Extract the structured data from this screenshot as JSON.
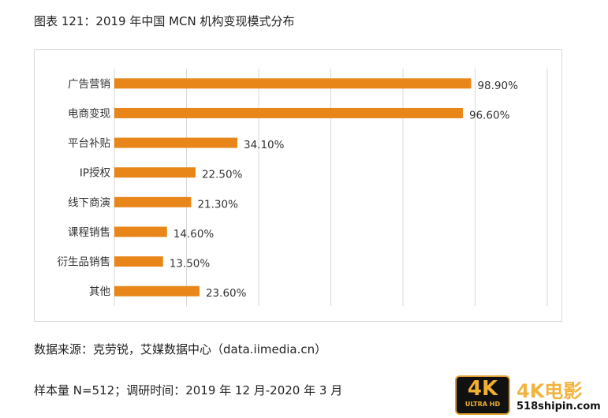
{
  "title": "图表 121：2019 年中国 MCN 机构变现模式分布",
  "source": "数据来源：克劳锐，艾媒数据中心（data.iimedia.cn）",
  "sample": "样本量 N=512；调研时间：2019 年 12 月-2020 年 3 月",
  "watermark": {
    "badge_top": "4K",
    "badge_bottom": "ULTRA HD",
    "brand": "4K电影",
    "url": "518shipin.com"
  },
  "chart_data": {
    "type": "bar",
    "orientation": "horizontal",
    "categories": [
      "广告营销",
      "电商变现",
      "平台补贴",
      "IP授权",
      "线下商演",
      "课程销售",
      "衍生品销售",
      "其他"
    ],
    "values": [
      98.9,
      96.6,
      34.1,
      22.5,
      21.3,
      14.6,
      13.5,
      23.6
    ],
    "data_labels": [
      "98.90%",
      "96.60%",
      "34.10%",
      "22.50%",
      "21.30%",
      "14.60%",
      "13.50%",
      "23.60%"
    ],
    "xlim": [
      0,
      120
    ],
    "grid_step": 20,
    "grid": true,
    "bar_color": "#e8861a"
  }
}
